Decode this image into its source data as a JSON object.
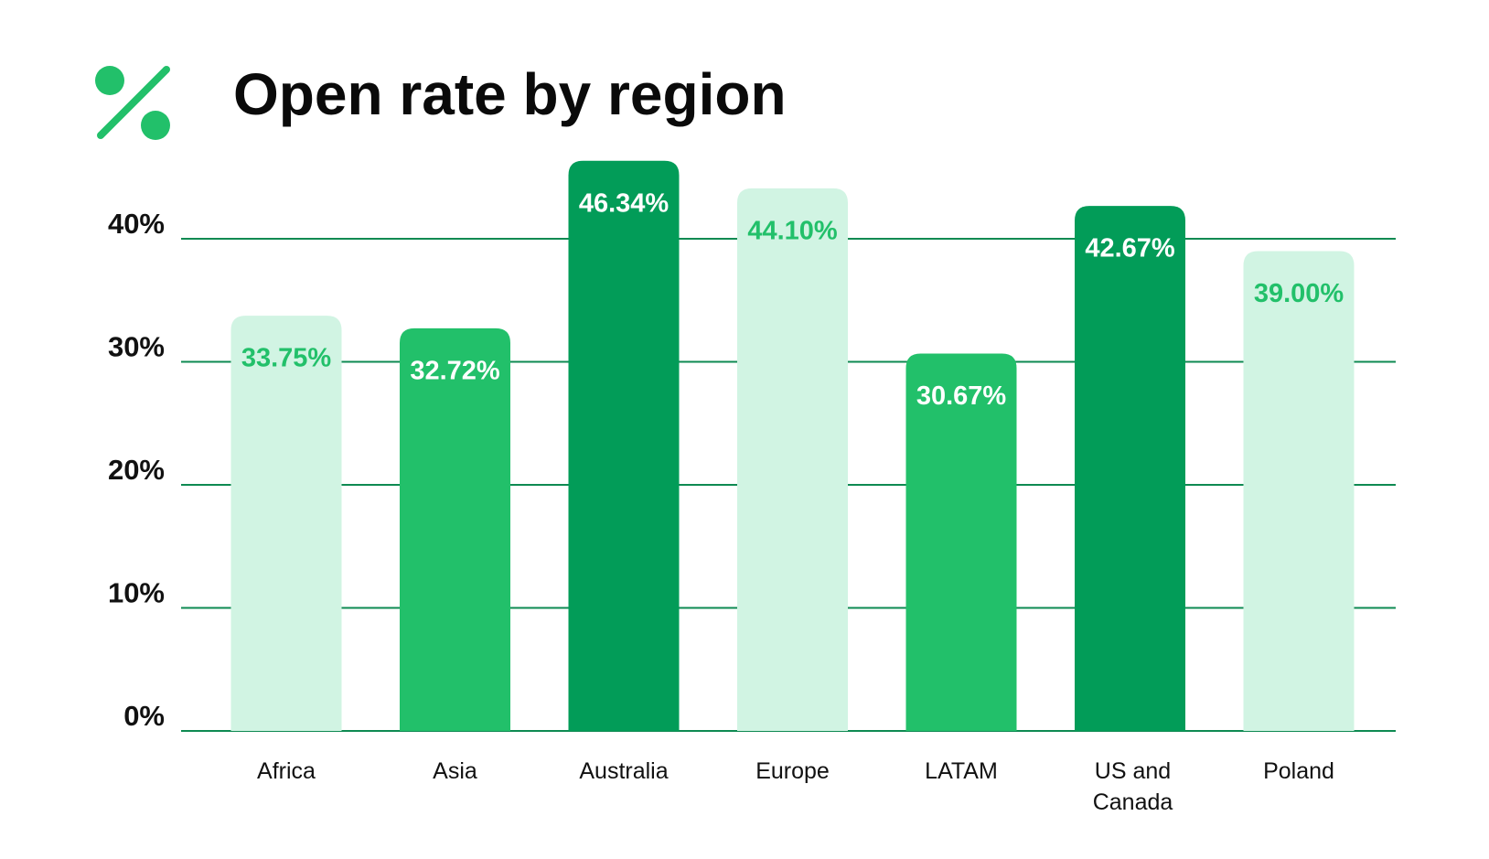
{
  "chart_data": {
    "type": "bar",
    "title": "Open rate by region",
    "categories": [
      "Africa",
      "Asia",
      "Australia",
      "Europe",
      "LATAM",
      "US and Canada",
      "Poland"
    ],
    "values": [
      33.75,
      32.72,
      46.34,
      44.1,
      30.67,
      42.67,
      39.0
    ],
    "value_labels": [
      "33.75%",
      "32.72%",
      "46.34%",
      "44.10%",
      "30.67%",
      "42.67%",
      "39.00%"
    ],
    "colors": [
      "#d1f4e3",
      "#22c06a",
      "#029c58",
      "#d1f4e3",
      "#22c06a",
      "#029c58",
      "#d1f4e3"
    ],
    "label_colors": [
      "#22c06a",
      "#ffffff",
      "#ffffff",
      "#22c06a",
      "#ffffff",
      "#ffffff",
      "#22c06a"
    ],
    "ylim": [
      0,
      50
    ],
    "yticks": [
      {
        "value": 0,
        "label": "0%"
      },
      {
        "value": 10,
        "label": "10%"
      },
      {
        "value": 20,
        "label": "20%"
      },
      {
        "value": 30,
        "label": "30%"
      },
      {
        "value": 40,
        "label": "40%"
      }
    ],
    "grid": true,
    "grid_color": "#0e8a52"
  }
}
